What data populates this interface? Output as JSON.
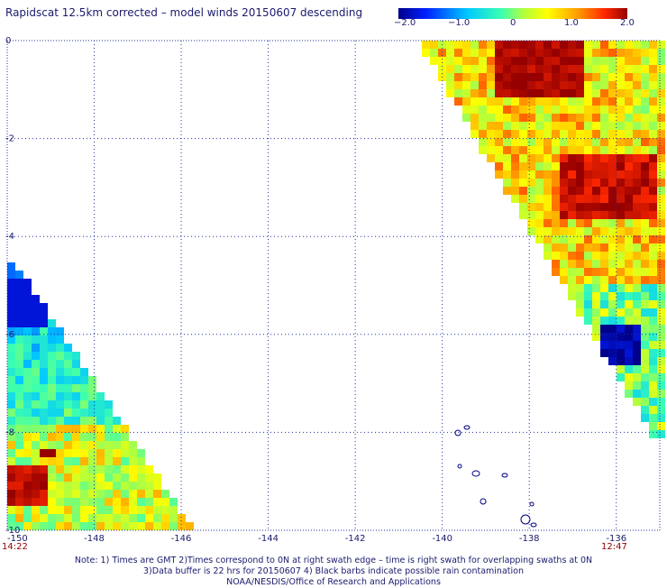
{
  "title": "Rapidscat 12.5km corrected – model winds 20150607 descending",
  "colorbar": {
    "labels": [
      "−2.0",
      "−1.0",
      "0",
      "1.0",
      "2.0"
    ],
    "colors": [
      "#00008b",
      "#0033ff",
      "#00c8ff",
      "#3cffb0",
      "#b4ff3c",
      "#ffff00",
      "#ffa000",
      "#ff2800",
      "#960000"
    ]
  },
  "map": {
    "x_ticks": [
      "-150",
      "-148",
      "-146",
      "-144",
      "-142",
      "-140",
      "-138",
      "-136"
    ],
    "y_ticks": [
      "0",
      "-2",
      "-4",
      "-6",
      "-8",
      "-10"
    ],
    "time_left": "14:22",
    "time_right": "12:47",
    "grid_color": "#2030a0",
    "coast_color": "#000080"
  },
  "notes": [
    "Note: 1) Times are GMT 2)Times correspond to 0N at right swath edge – time is right swath for overlapping swaths at 0N",
    "3)Data buffer is 22 hrs for 20150607 4) Black barbs indicate possible rain contamination",
    "NOAA/NESDIS/Office of Research and Applications"
  ]
}
